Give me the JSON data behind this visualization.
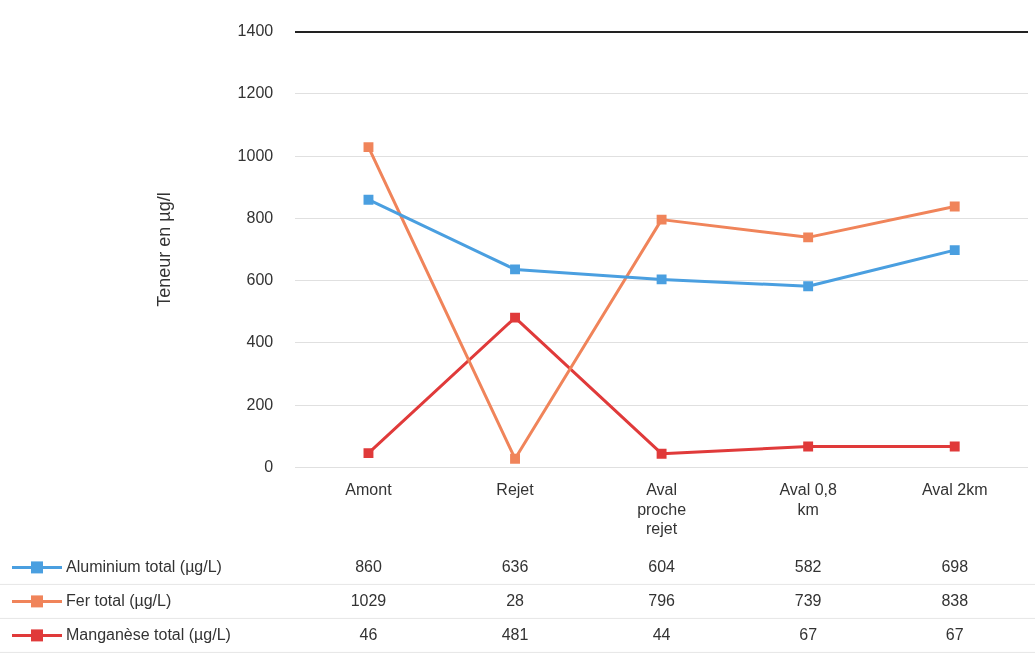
{
  "chart_data": {
    "type": "line",
    "ylabel": "Teneur en µg/l",
    "categories": [
      "Amont",
      "Rejet",
      "Aval proche rejet",
      "Aval 0,8 km",
      "Aval 2km"
    ],
    "series": [
      {
        "name": "Aluminium total (µg/L)",
        "color": "#4a9fe0",
        "values": [
          860,
          636,
          604,
          582,
          698
        ]
      },
      {
        "name": "Fer total (µg/L)",
        "color": "#f0845a",
        "values": [
          1029,
          28,
          796,
          739,
          838
        ]
      },
      {
        "name": "Manganèse total (µg/L)",
        "color": "#e03a3a",
        "values": [
          46,
          481,
          44,
          67,
          67
        ]
      }
    ],
    "ylim": [
      0,
      1400
    ],
    "yticks": [
      0,
      200,
      400,
      600,
      800,
      1000,
      1200,
      1400
    ],
    "grid": "y",
    "legend": "bottom",
    "marker": "square",
    "line_style": "solid",
    "data_labels": true
  }
}
